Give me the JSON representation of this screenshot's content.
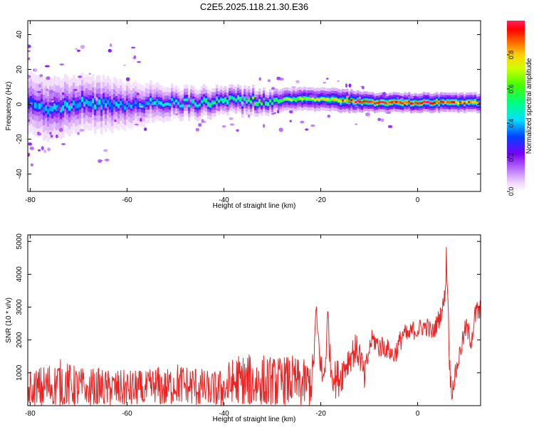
{
  "title": "C2E5.2025.118.21.30.E36",
  "chart_data": [
    {
      "type": "heatmap",
      "xlabel": "Height of straight line (km)",
      "ylabel": "Frequency (Hz)",
      "xlim": [
        -80.5,
        13
      ],
      "ylim": [
        -50,
        48
      ],
      "xticks": [
        -80,
        -60,
        -40,
        -20,
        0
      ],
      "yticks": [
        -40,
        -20,
        0,
        20,
        40
      ],
      "colorbar": {
        "label": "Normalized spectral amplitude",
        "range": [
          0,
          1
        ],
        "ticks": [
          0.0,
          0.2,
          0.4,
          0.6,
          0.8
        ],
        "tick_labels": [
          "0.0",
          "0.2",
          "0.4",
          "0.6",
          "0.8"
        ]
      },
      "ridge_profile": {
        "x": [
          -80,
          -75,
          -70,
          -65,
          -60,
          -55,
          -50,
          -45,
          -40,
          -35,
          -30,
          -25,
          -20,
          -15,
          -10,
          -5,
          0,
          5,
          10,
          13
        ],
        "center_hz": [
          0,
          -3,
          1,
          0,
          0,
          1,
          1,
          1,
          2,
          2,
          2,
          3,
          3,
          2,
          1,
          1,
          1,
          1,
          1,
          1
        ],
        "half_width_hz": [
          8,
          8,
          7,
          7,
          6,
          5,
          4,
          4,
          3.5,
          3.5,
          3,
          3,
          3,
          3,
          2.5,
          2.5,
          2.5,
          2.5,
          2.5,
          2.5
        ],
        "peak_amplitude": [
          0.35,
          0.4,
          0.4,
          0.4,
          0.35,
          0.4,
          0.45,
          0.5,
          0.55,
          0.6,
          0.6,
          0.7,
          0.7,
          0.85,
          0.95,
          0.95,
          0.95,
          0.9,
          0.85,
          0.85
        ]
      }
    },
    {
      "type": "line",
      "xlabel": "Height of straight line (km)",
      "ylabel": "SNR (10 * v/v)",
      "xlim": [
        -80.5,
        13
      ],
      "ylim": [
        0,
        5200
      ],
      "xticks": [
        -80,
        -60,
        -40,
        -20,
        0
      ],
      "yticks": [
        1000,
        2000,
        3000,
        4000,
        5000
      ],
      "color": "#ee2222",
      "series": [
        {
          "x": [
            -80,
            -78,
            -76,
            -74,
            -72,
            -70,
            -68,
            -66,
            -64,
            -62,
            -60,
            -58,
            -56,
            -54,
            -52,
            -50,
            -48,
            -46,
            -44,
            -42,
            -40,
            -38,
            -36,
            -34,
            -32,
            -30,
            -28,
            -26,
            -24,
            -22,
            -21.5,
            -21,
            -20,
            -19.5,
            -19,
            -18.5,
            -18,
            -17,
            -16,
            -15,
            -14,
            -13,
            -12,
            -11,
            -10,
            -9.5,
            -9,
            -8,
            -7,
            -6,
            -5,
            -4,
            -3,
            -2,
            -1,
            0,
            1,
            2,
            3,
            4,
            5,
            5.5,
            6,
            6.3,
            6.6,
            7,
            8,
            9,
            10,
            11,
            12,
            13
          ],
          "mean": [
            400,
            500,
            600,
            700,
            600,
            550,
            500,
            550,
            500,
            500,
            500,
            500,
            450,
            600,
            500,
            700,
            600,
            600,
            500,
            450,
            500,
            700,
            700,
            700,
            700,
            650,
            700,
            750,
            650,
            700,
            1200,
            2800,
            1200,
            700,
            1500,
            2800,
            1200,
            800,
            900,
            1200,
            1500,
            1700,
            1600,
            800,
            1700,
            2000,
            2000,
            1800,
            1800,
            1700,
            1500,
            1800,
            2200,
            2100,
            2300,
            2300,
            2400,
            2400,
            2200,
            2500,
            2900,
            3200,
            4500,
            3000,
            1200,
            400,
            1100,
            1800,
            2400,
            2000,
            2800,
            2900
          ],
          "spread": [
            700,
            700,
            750,
            750,
            700,
            650,
            650,
            600,
            600,
            600,
            600,
            600,
            600,
            650,
            600,
            650,
            650,
            650,
            600,
            600,
            650,
            900,
            900,
            850,
            900,
            850,
            800,
            800,
            750,
            750,
            500,
            500,
            500,
            700,
            500,
            500,
            500,
            600,
            600,
            550,
            500,
            500,
            500,
            500,
            300,
            300,
            350,
            350,
            350,
            300,
            300,
            350,
            350,
            300,
            300,
            300,
            300,
            300,
            300,
            300,
            300,
            300,
            700,
            500,
            400,
            300,
            300,
            300,
            350,
            350,
            400,
            400
          ]
        }
      ]
    }
  ]
}
